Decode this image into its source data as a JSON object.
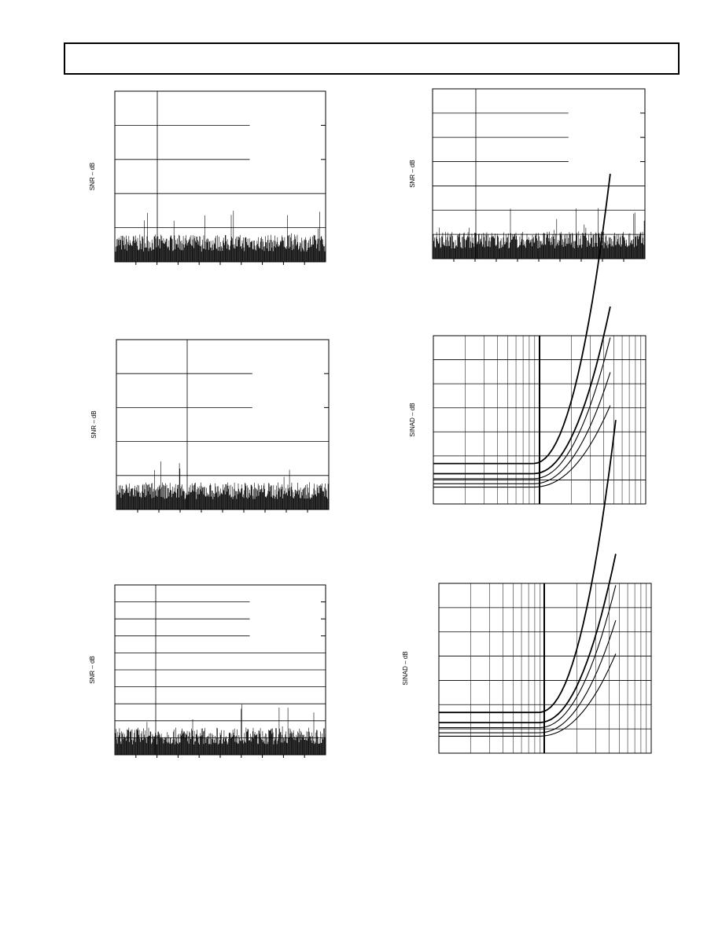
{
  "plots": [
    {
      "ylabel": "SNR – dB"
    },
    {
      "ylabel": "SNR – dB"
    },
    {
      "ylabel": "SNR – dB"
    },
    {
      "ylabel": "SINAD – dB"
    },
    {
      "ylabel": "SNR – dB"
    },
    {
      "ylabel": "SINAD – dB"
    }
  ]
}
